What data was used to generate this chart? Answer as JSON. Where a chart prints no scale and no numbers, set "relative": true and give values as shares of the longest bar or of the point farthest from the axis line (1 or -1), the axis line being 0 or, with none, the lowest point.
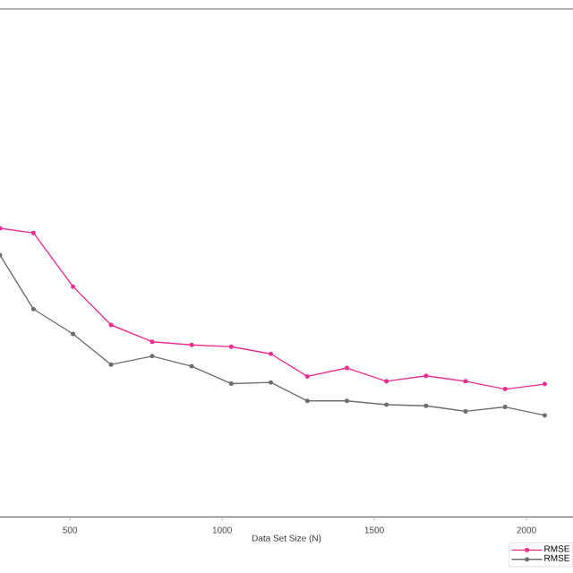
{
  "chart_data": {
    "type": "line",
    "relative": true,
    "xlabel": "Data Set Size (N)",
    "x": [
      270,
      380,
      510,
      635,
      770,
      900,
      1030,
      1160,
      1280,
      1410,
      1540,
      1670,
      1800,
      1930,
      2060
    ],
    "xlim": [
      270,
      2153
    ],
    "xticks": [
      500,
      1000,
      1500,
      2000
    ],
    "marker": "circle",
    "legend": "bottom right",
    "series": [
      {
        "name": "RMSE",
        "color": "#e8308f",
        "values": [
          1,
          0.984,
          0.798,
          0.665,
          0.607,
          0.596,
          0.59,
          0.565,
          0.487,
          0.516,
          0.47,
          0.489,
          0.47,
          0.443,
          0.46
        ]
      },
      {
        "name": "RMSE",
        "color": "#6e6e6e",
        "values": [
          0.907,
          0.72,
          0.634,
          0.528,
          0.557,
          0.522,
          0.462,
          0.466,
          0.402,
          0.402,
          0.389,
          0.385,
          0.366,
          0.381,
          0.352
        ]
      }
    ]
  }
}
